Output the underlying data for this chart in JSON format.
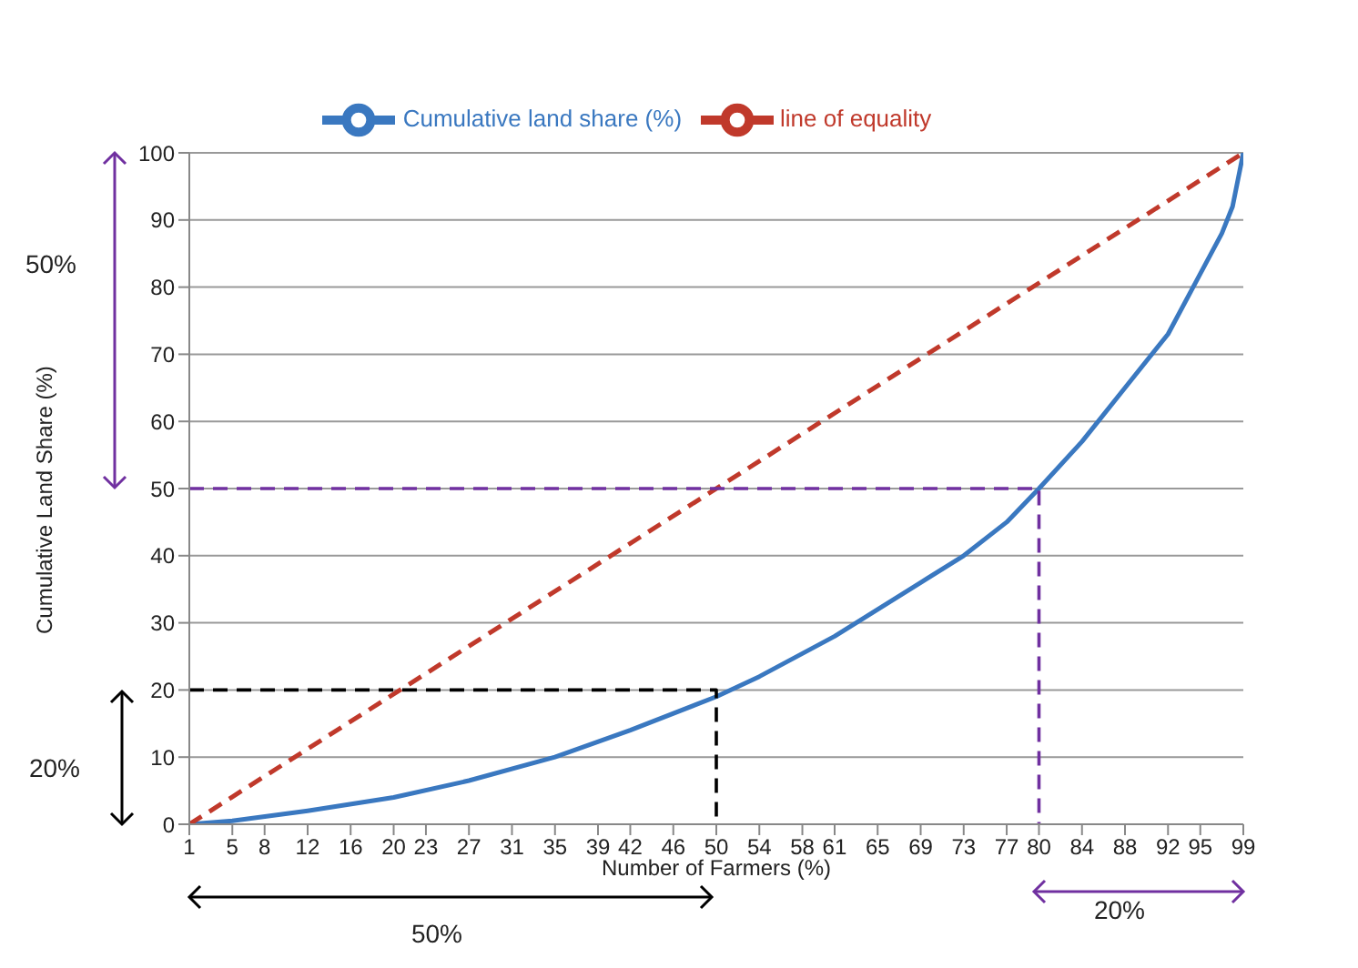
{
  "chart_data": {
    "type": "line",
    "xlabel": "Number of Farmers (%)",
    "ylabel": "Cumulative Land Share (%)",
    "xlim": [
      1,
      99
    ],
    "xticks": [
      1,
      5,
      8,
      12,
      16,
      20,
      23,
      27,
      31,
      35,
      39,
      42,
      46,
      50,
      54,
      58,
      61,
      65,
      69,
      73,
      77,
      80,
      84,
      88,
      92,
      95,
      99
    ],
    "ylim": [
      0,
      100
    ],
    "yticks": [
      0,
      10,
      20,
      30,
      40,
      50,
      60,
      70,
      80,
      90,
      100
    ],
    "grid": "y",
    "legend": "top",
    "marker": "none",
    "series": [
      {
        "name": "Cumulative land share (%)",
        "color": "#3a78c0",
        "line_style": "solid",
        "x": [
          1,
          5,
          12,
          20,
          27,
          35,
          42,
          50,
          54,
          61,
          65,
          69,
          73,
          77,
          80,
          84,
          88,
          92,
          95,
          97,
          98,
          99
        ],
        "values": [
          0,
          0.5,
          2,
          4,
          6.5,
          10,
          14,
          19,
          22,
          28,
          32,
          36,
          40,
          45,
          50,
          57,
          65,
          73,
          82,
          88,
          92,
          100
        ]
      },
      {
        "name": "line of equality",
        "color": "#c0392b",
        "line_style": "dashed",
        "x": [
          1,
          99
        ],
        "values": [
          0,
          100
        ]
      },
      {
        "color": "#7030a0",
        "line_style": "dashed",
        "x": [
          1,
          80,
          80
        ],
        "values": [
          50,
          50,
          0
        ]
      },
      {
        "color": "#000000",
        "line_style": "dashed",
        "x": [
          1,
          50,
          50
        ],
        "values": [
          20,
          20,
          0
        ]
      }
    ],
    "annotations": [
      "50%",
      "20%",
      "50%",
      "20%"
    ]
  }
}
